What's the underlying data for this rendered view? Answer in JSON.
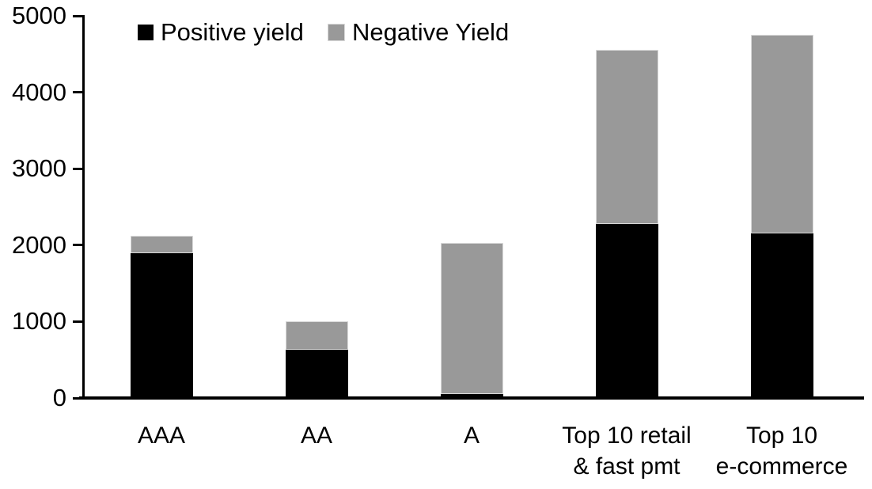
{
  "chart_data": {
    "type": "bar",
    "stacked": true,
    "title": "",
    "xlabel": "",
    "ylabel": "",
    "categories": [
      "AAA",
      "AA",
      "A",
      "Top 10 retail & fast pmt",
      "Top 10 e-commerce"
    ],
    "category_display_lines": [
      [
        "AAA"
      ],
      [
        "AA"
      ],
      [
        "A"
      ],
      [
        "Top 10 retail",
        "& fast pmt"
      ],
      [
        "Top 10",
        "e-commerce"
      ]
    ],
    "series": [
      {
        "name": "Positive yield",
        "color": "#000000",
        "values": [
          1890,
          630,
          50,
          2280,
          2150
        ]
      },
      {
        "name": "Negative Yield",
        "color": "#999999",
        "values": [
          230,
          370,
          1980,
          2270,
          2600
        ]
      }
    ],
    "totals": [
      2120,
      1000,
      2030,
      4550,
      4750
    ],
    "ylim": [
      0,
      5000
    ],
    "yticks": [
      0,
      1000,
      2000,
      3000,
      4000,
      5000
    ],
    "grid": false,
    "legend_position": "top",
    "axis_color": "#000000",
    "background_color": "#ffffff"
  }
}
